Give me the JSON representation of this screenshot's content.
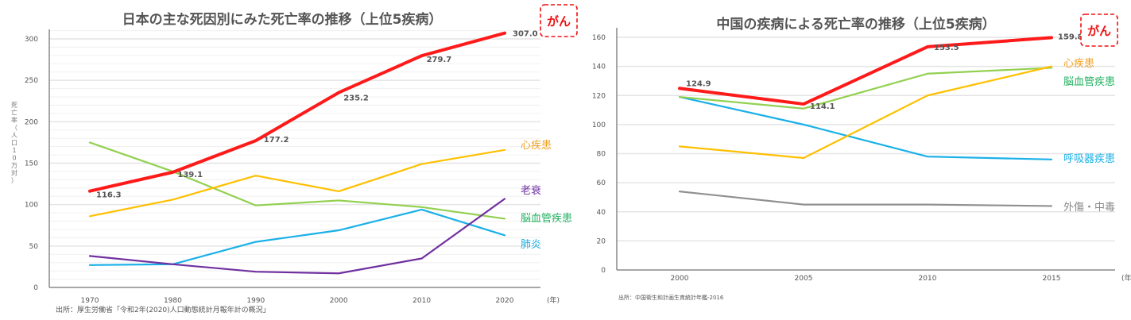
{
  "chart_data": [
    {
      "type": "line",
      "title": "日本の主な死因別にみた死亡率の推移（上位5疾病）",
      "ylabel": "死亡率（人口10万対）",
      "xlabel": "(年)",
      "source": "出所：厚生労働省「令和2年(2020)人口動態統計月報年計の概況」",
      "x": [
        1970,
        1980,
        1990,
        2000,
        2010,
        2020
      ],
      "ylim": [
        0,
        300
      ],
      "yticks": [
        0,
        50,
        100,
        150,
        200,
        250,
        300
      ],
      "grid": true,
      "highlight": "がん",
      "series": [
        {
          "name": "がん",
          "color": "#ff1a1a",
          "values": [
            116.3,
            139.1,
            177.2,
            235.2,
            279.7,
            307.0
          ],
          "labels": [
            "116.3",
            "139.1",
            "177.2",
            "235.2",
            "279.7",
            "307.0"
          ]
        },
        {
          "name": "心疾患",
          "color": "#ffc000",
          "label_color": "#f0a020",
          "values": [
            86,
            106,
            135,
            116,
            149,
            166
          ]
        },
        {
          "name": "老衰",
          "color": "#7030a0",
          "values": [
            38,
            28,
            19,
            17,
            35,
            107
          ]
        },
        {
          "name": "脳血管疾患",
          "color": "#92d050",
          "label_color": "#22b060",
          "values": [
            175,
            140,
            99,
            105,
            97,
            83
          ]
        },
        {
          "name": "肺炎",
          "color": "#1ab0e8",
          "values": [
            27,
            28,
            55,
            69,
            94,
            63
          ]
        }
      ]
    },
    {
      "type": "line",
      "title": "中国の疾病による死亡率の推移（上位5疾病）",
      "xlabel": "(年)",
      "source": "出所：中国衛生和計画生育統計年鑑-2016",
      "x": [
        2000,
        2005,
        2010,
        2015
      ],
      "ylim": [
        0,
        160
      ],
      "yticks": [
        0,
        20,
        40,
        60,
        80,
        100,
        120,
        140,
        160
      ],
      "grid": true,
      "highlight": "がん",
      "series": [
        {
          "name": "がん",
          "color": "#ff1a1a",
          "values": [
            124.9,
            114.1,
            153.5,
            159.8
          ],
          "labels": [
            "124.9",
            "114.1",
            "153.5",
            "159.8"
          ]
        },
        {
          "name": "心疾患",
          "color": "#ffc000",
          "label_color": "#f0a020",
          "values": [
            85,
            77,
            120,
            140
          ]
        },
        {
          "name": "脳血管疾患",
          "color": "#92d050",
          "label_color": "#22b060",
          "values": [
            119,
            111,
            135,
            139
          ]
        },
        {
          "name": "呼吸器疾患",
          "color": "#1ab0e8",
          "values": [
            119,
            100,
            78,
            76
          ]
        },
        {
          "name": "外傷・中毒",
          "color": "#909090",
          "label_color": "#888888",
          "values": [
            54,
            45,
            45,
            44
          ]
        }
      ]
    }
  ]
}
